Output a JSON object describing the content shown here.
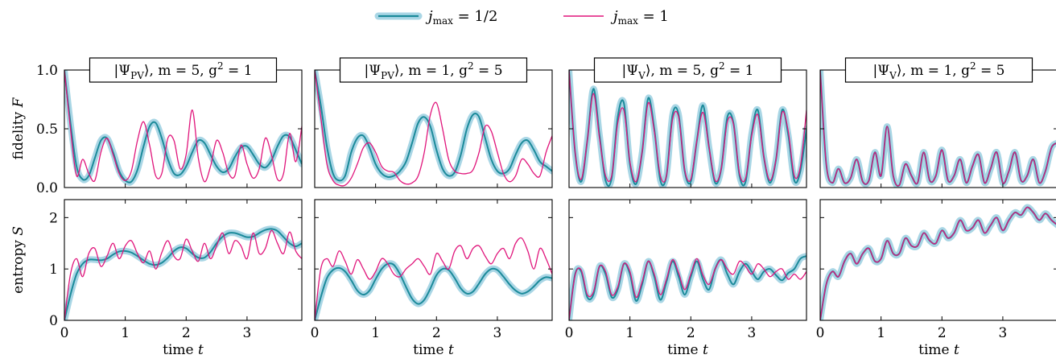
{
  "legend": [
    {
      "label": "j_max = 1/2",
      "color": "#1b8a9a",
      "halo": "#a9d6e5"
    },
    {
      "label": "j_max = 1",
      "color": "#e0157b"
    }
  ],
  "chart_data": {
    "type": "line",
    "t_range": [
      0,
      3.9
    ],
    "xticks": [
      0,
      1,
      2,
      3
    ],
    "xlabel": "time t",
    "rows": [
      {
        "ylabel": "fidelity F",
        "ylim": [
          0,
          1.0
        ],
        "yticks": [
          0.0,
          0.5,
          1.0
        ],
        "ytick_labels": [
          "0.0",
          "0.5",
          "1.0"
        ]
      },
      {
        "ylabel": "entropy S",
        "ylim": [
          0,
          2.35
        ],
        "yticks": [
          0,
          1,
          2
        ],
        "ytick_labels": [
          "0",
          "1",
          "2"
        ]
      }
    ],
    "panels": [
      {
        "title": "|Ψ_PV⟩, m = 5, g² = 1",
        "fidelity": {
          "t": [
            0,
            0.1,
            0.2,
            0.3,
            0.4,
            0.5,
            0.6,
            0.7,
            0.8,
            0.9,
            1.0,
            1.1,
            1.2,
            1.3,
            1.4,
            1.5,
            1.6,
            1.7,
            1.8,
            1.9,
            2.0,
            2.1,
            2.2,
            2.3,
            2.4,
            2.5,
            2.6,
            2.7,
            2.8,
            2.9,
            3.0,
            3.1,
            3.2,
            3.3,
            3.4,
            3.5,
            3.6,
            3.7,
            3.8,
            3.9
          ],
          "jmax_half": [
            1.0,
            0.55,
            0.18,
            0.07,
            0.1,
            0.25,
            0.4,
            0.42,
            0.3,
            0.14,
            0.06,
            0.05,
            0.15,
            0.35,
            0.52,
            0.55,
            0.42,
            0.24,
            0.12,
            0.11,
            0.18,
            0.3,
            0.4,
            0.38,
            0.28,
            0.18,
            0.13,
            0.16,
            0.26,
            0.34,
            0.35,
            0.28,
            0.2,
            0.17,
            0.23,
            0.35,
            0.44,
            0.43,
            0.32,
            0.2
          ],
          "jmax_one": [
            1.0,
            0.5,
            0.1,
            0.24,
            0.12,
            0.06,
            0.3,
            0.42,
            0.28,
            0.12,
            0.06,
            0.14,
            0.4,
            0.56,
            0.36,
            0.1,
            0.12,
            0.42,
            0.4,
            0.16,
            0.28,
            0.66,
            0.25,
            0.05,
            0.18,
            0.4,
            0.3,
            0.12,
            0.1,
            0.36,
            0.2,
            0.08,
            0.16,
            0.42,
            0.28,
            0.07,
            0.12,
            0.46,
            0.22,
            0.52
          ]
        },
        "entropy": {
          "t": [
            0,
            0.1,
            0.2,
            0.3,
            0.4,
            0.5,
            0.6,
            0.7,
            0.8,
            0.9,
            1.0,
            1.1,
            1.2,
            1.3,
            1.4,
            1.5,
            1.6,
            1.7,
            1.8,
            1.9,
            2.0,
            2.1,
            2.2,
            2.3,
            2.4,
            2.5,
            2.6,
            2.7,
            2.8,
            2.9,
            3.0,
            3.1,
            3.2,
            3.3,
            3.4,
            3.5,
            3.6,
            3.7,
            3.8,
            3.9
          ],
          "jmax_half": [
            0,
            0.5,
            0.9,
            1.1,
            1.18,
            1.18,
            1.17,
            1.2,
            1.28,
            1.34,
            1.35,
            1.32,
            1.25,
            1.17,
            1.1,
            1.08,
            1.12,
            1.22,
            1.35,
            1.42,
            1.4,
            1.3,
            1.22,
            1.22,
            1.33,
            1.5,
            1.63,
            1.7,
            1.7,
            1.66,
            1.62,
            1.63,
            1.7,
            1.76,
            1.78,
            1.74,
            1.62,
            1.5,
            1.44,
            1.5
          ],
          "jmax_one": [
            0,
            0.9,
            1.2,
            0.85,
            1.3,
            1.4,
            1.05,
            1.25,
            1.5,
            1.2,
            1.45,
            1.55,
            1.3,
            1.12,
            1.35,
            1.0,
            1.32,
            1.55,
            1.25,
            1.2,
            1.58,
            1.35,
            1.15,
            1.5,
            1.2,
            1.45,
            1.7,
            1.3,
            1.55,
            1.45,
            1.2,
            1.7,
            1.3,
            1.4,
            1.75,
            1.5,
            1.3,
            1.72,
            1.35,
            1.2
          ]
        }
      },
      {
        "title": "|Ψ_PV⟩, m = 1, g² = 5",
        "fidelity": {
          "t": [
            0,
            0.1,
            0.2,
            0.3,
            0.4,
            0.5,
            0.6,
            0.7,
            0.8,
            0.9,
            1.0,
            1.1,
            1.2,
            1.3,
            1.4,
            1.5,
            1.6,
            1.7,
            1.8,
            1.9,
            2.0,
            2.1,
            2.2,
            2.3,
            2.4,
            2.5,
            2.6,
            2.7,
            2.8,
            2.9,
            3.0,
            3.1,
            3.2,
            3.3,
            3.4,
            3.5,
            3.6,
            3.7,
            3.8,
            3.9
          ],
          "jmax_half": [
            1.0,
            0.7,
            0.35,
            0.12,
            0.06,
            0.1,
            0.3,
            0.42,
            0.44,
            0.34,
            0.2,
            0.12,
            0.09,
            0.1,
            0.14,
            0.22,
            0.38,
            0.55,
            0.6,
            0.52,
            0.32,
            0.16,
            0.1,
            0.13,
            0.28,
            0.5,
            0.62,
            0.6,
            0.42,
            0.24,
            0.14,
            0.12,
            0.16,
            0.28,
            0.38,
            0.4,
            0.32,
            0.22,
            0.18,
            0.14
          ],
          "jmax_one": [
            1.0,
            0.6,
            0.2,
            0.06,
            0.02,
            0.02,
            0.08,
            0.2,
            0.34,
            0.38,
            0.3,
            0.18,
            0.14,
            0.13,
            0.06,
            0.03,
            0.04,
            0.1,
            0.3,
            0.62,
            0.72,
            0.5,
            0.24,
            0.14,
            0.12,
            0.12,
            0.15,
            0.3,
            0.52,
            0.48,
            0.3,
            0.12,
            0.05,
            0.1,
            0.24,
            0.2,
            0.12,
            0.1,
            0.3,
            0.44
          ]
        },
        "entropy": {
          "t": [
            0,
            0.1,
            0.2,
            0.3,
            0.4,
            0.5,
            0.6,
            0.7,
            0.8,
            0.9,
            1.0,
            1.1,
            1.2,
            1.3,
            1.4,
            1.5,
            1.6,
            1.7,
            1.8,
            1.9,
            2.0,
            2.1,
            2.2,
            2.3,
            2.4,
            2.5,
            2.6,
            2.7,
            2.8,
            2.9,
            3.0,
            3.1,
            3.2,
            3.3,
            3.4,
            3.5,
            3.6,
            3.7,
            3.8,
            3.9
          ],
          "jmax_half": [
            0,
            0.45,
            0.82,
            0.98,
            1.02,
            0.95,
            0.78,
            0.58,
            0.5,
            0.58,
            0.8,
            1.0,
            1.1,
            1.08,
            0.9,
            0.65,
            0.42,
            0.32,
            0.4,
            0.62,
            0.88,
            1.0,
            0.98,
            0.82,
            0.62,
            0.52,
            0.56,
            0.72,
            0.9,
            1.0,
            0.98,
            0.85,
            0.7,
            0.58,
            0.52,
            0.56,
            0.66,
            0.78,
            0.84,
            0.82
          ],
          "jmax_one": [
            0,
            1.0,
            1.2,
            1.05,
            1.35,
            1.15,
            0.9,
            1.18,
            1.0,
            0.8,
            0.95,
            1.2,
            1.1,
            0.9,
            0.85,
            1.0,
            1.1,
            1.2,
            1.05,
            0.9,
            1.3,
            1.15,
            1.0,
            1.35,
            1.45,
            1.2,
            1.4,
            1.45,
            1.25,
            1.1,
            1.3,
            1.4,
            1.2,
            1.5,
            1.6,
            1.35,
            1.0,
            1.4,
            1.2,
            0.9
          ]
        }
      },
      {
        "title": "|Ψ_V⟩, m = 5, g² = 1",
        "fidelity": {
          "t": [
            0,
            0.1,
            0.2,
            0.3,
            0.4,
            0.5,
            0.6,
            0.7,
            0.8,
            0.9,
            1.0,
            1.1,
            1.2,
            1.3,
            1.4,
            1.5,
            1.6,
            1.7,
            1.8,
            1.9,
            2.0,
            2.1,
            2.2,
            2.3,
            2.4,
            2.5,
            2.6,
            2.7,
            2.8,
            2.9,
            3.0,
            3.1,
            3.2,
            3.3,
            3.4,
            3.5,
            3.6,
            3.7,
            3.8,
            3.9
          ],
          "jmax_half": [
            1.0,
            0.3,
            0.05,
            0.4,
            0.84,
            0.45,
            0.06,
            0.08,
            0.6,
            0.72,
            0.2,
            0.03,
            0.3,
            0.76,
            0.5,
            0.06,
            0.1,
            0.62,
            0.62,
            0.14,
            0.05,
            0.4,
            0.7,
            0.34,
            0.04,
            0.16,
            0.6,
            0.55,
            0.1,
            0.05,
            0.46,
            0.66,
            0.26,
            0.04,
            0.24,
            0.66,
            0.45,
            0.06,
            0.14,
            0.5
          ],
          "jmax_one": [
            1.0,
            0.3,
            0.07,
            0.4,
            0.8,
            0.42,
            0.1,
            0.1,
            0.55,
            0.66,
            0.22,
            0.05,
            0.3,
            0.72,
            0.48,
            0.1,
            0.1,
            0.58,
            0.6,
            0.15,
            0.07,
            0.4,
            0.64,
            0.34,
            0.06,
            0.16,
            0.56,
            0.54,
            0.12,
            0.08,
            0.44,
            0.62,
            0.26,
            0.06,
            0.24,
            0.64,
            0.48,
            0.1,
            0.18,
            0.66
          ]
        },
        "entropy": {
          "t": [
            0,
            0.1,
            0.2,
            0.3,
            0.4,
            0.5,
            0.6,
            0.7,
            0.8,
            0.9,
            1.0,
            1.1,
            1.2,
            1.3,
            1.4,
            1.5,
            1.6,
            1.7,
            1.8,
            1.9,
            2.0,
            2.1,
            2.2,
            2.3,
            2.4,
            2.5,
            2.6,
            2.7,
            2.8,
            2.9,
            3.0,
            3.1,
            3.2,
            3.3,
            3.4,
            3.5,
            3.6,
            3.7,
            3.8,
            3.9
          ],
          "jmax_half": [
            0,
            0.9,
            0.95,
            0.45,
            0.5,
            1.05,
            0.9,
            0.45,
            0.6,
            1.1,
            0.9,
            0.38,
            0.7,
            1.15,
            0.85,
            0.4,
            0.75,
            1.15,
            0.85,
            0.5,
            0.85,
            1.15,
            0.8,
            0.6,
            1.0,
            1.18,
            0.9,
            0.7,
            0.95,
            1.1,
            0.95,
            0.8,
            0.95,
            1.0,
            0.88,
            0.78,
            0.92,
            1.0,
            1.2,
            1.25
          ],
          "jmax_one": [
            0,
            0.88,
            0.98,
            0.5,
            0.55,
            1.05,
            0.95,
            0.5,
            0.65,
            1.1,
            0.95,
            0.45,
            0.75,
            1.15,
            0.9,
            0.5,
            0.8,
            1.18,
            0.92,
            0.6,
            0.9,
            1.2,
            0.88,
            0.7,
            1.0,
            1.18,
            1.0,
            0.9,
            1.15,
            1.05,
            0.9,
            1.1,
            1.0,
            0.85,
            0.95,
            1.0,
            0.8,
            0.9,
            0.8,
            0.95
          ]
        }
      },
      {
        "title": "|Ψ_V⟩, m = 1, g² = 5",
        "fidelity": {
          "t": [
            0,
            0.1,
            0.2,
            0.3,
            0.4,
            0.5,
            0.6,
            0.7,
            0.8,
            0.9,
            1.0,
            1.1,
            1.2,
            1.3,
            1.4,
            1.5,
            1.6,
            1.7,
            1.8,
            1.9,
            2.0,
            2.1,
            2.2,
            2.3,
            2.4,
            2.5,
            2.6,
            2.7,
            2.8,
            2.9,
            3.0,
            3.1,
            3.2,
            3.3,
            3.4,
            3.5,
            3.6,
            3.7,
            3.8,
            3.9
          ],
          "jmax_half": [
            1.0,
            0.2,
            0.04,
            0.16,
            0.04,
            0.08,
            0.24,
            0.05,
            0.06,
            0.3,
            0.1,
            0.52,
            0.1,
            0.02,
            0.2,
            0.1,
            0.04,
            0.3,
            0.06,
            0.1,
            0.32,
            0.06,
            0.1,
            0.24,
            0.04,
            0.18,
            0.28,
            0.04,
            0.16,
            0.3,
            0.04,
            0.14,
            0.3,
            0.06,
            0.1,
            0.24,
            0.04,
            0.14,
            0.34,
            0.38
          ],
          "jmax_one": [
            1.0,
            0.2,
            0.04,
            0.16,
            0.04,
            0.08,
            0.24,
            0.05,
            0.06,
            0.3,
            0.1,
            0.52,
            0.1,
            0.02,
            0.2,
            0.1,
            0.04,
            0.3,
            0.06,
            0.1,
            0.32,
            0.06,
            0.1,
            0.24,
            0.04,
            0.18,
            0.28,
            0.04,
            0.16,
            0.3,
            0.04,
            0.14,
            0.3,
            0.06,
            0.1,
            0.24,
            0.04,
            0.14,
            0.34,
            0.38
          ]
        },
        "entropy": {
          "t": [
            0,
            0.1,
            0.2,
            0.3,
            0.4,
            0.5,
            0.6,
            0.7,
            0.8,
            0.9,
            1.0,
            1.1,
            1.2,
            1.3,
            1.4,
            1.5,
            1.6,
            1.7,
            1.8,
            1.9,
            2.0,
            2.1,
            2.2,
            2.3,
            2.4,
            2.5,
            2.6,
            2.7,
            2.8,
            2.9,
            3.0,
            3.1,
            3.2,
            3.3,
            3.4,
            3.5,
            3.6,
            3.7,
            3.8,
            3.9
          ],
          "jmax_half": [
            0,
            0.7,
            0.95,
            0.85,
            1.15,
            1.3,
            1.1,
            1.3,
            1.4,
            1.15,
            1.2,
            1.55,
            1.3,
            1.3,
            1.6,
            1.45,
            1.45,
            1.7,
            1.55,
            1.5,
            1.75,
            1.6,
            1.7,
            1.95,
            1.75,
            1.8,
            1.95,
            1.7,
            1.85,
            2.0,
            1.75,
            1.95,
            2.1,
            2.05,
            2.2,
            2.1,
            1.95,
            2.08,
            1.95,
            1.85
          ],
          "jmax_one": [
            0,
            0.7,
            0.95,
            0.85,
            1.15,
            1.3,
            1.1,
            1.3,
            1.4,
            1.15,
            1.2,
            1.55,
            1.3,
            1.3,
            1.6,
            1.45,
            1.45,
            1.7,
            1.55,
            1.5,
            1.75,
            1.6,
            1.7,
            1.95,
            1.75,
            1.8,
            1.95,
            1.7,
            1.85,
            2.0,
            1.75,
            1.95,
            2.1,
            2.05,
            2.2,
            2.1,
            1.95,
            2.08,
            1.95,
            1.85
          ]
        }
      }
    ]
  }
}
